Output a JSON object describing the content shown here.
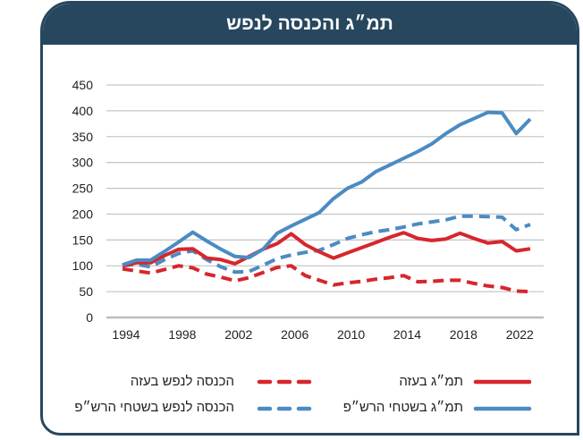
{
  "title": "תמ״ג והכנסה לנפש",
  "colors": {
    "header": "#27475f",
    "red": "#d7262d",
    "blue": "#4b8bc3",
    "grid": "#c8c8c8"
  },
  "chart_data": {
    "type": "line",
    "title": "תמ״ג והכנסה לנפש",
    "xlabel": "",
    "ylabel": "",
    "ylim": [
      0,
      450
    ],
    "xlim": [
      1994,
      2023
    ],
    "yticks": [
      0,
      50,
      100,
      150,
      200,
      250,
      300,
      350,
      400,
      450
    ],
    "xticks": [
      1994,
      1998,
      2002,
      2006,
      2010,
      2014,
      2018,
      2022
    ],
    "grid": "horizontal",
    "legend_placement": "bottom",
    "x": [
      1994,
      1995,
      1996,
      1997,
      1998,
      1999,
      2000,
      2001,
      2002,
      2003,
      2004,
      2005,
      2006,
      2007,
      2008,
      2009,
      2010,
      2011,
      2012,
      2013,
      2014,
      2015,
      2016,
      2017,
      2018,
      2019,
      2020,
      2021,
      2022,
      2023
    ],
    "series": [
      {
        "name": "תמ״ג בעזה",
        "style": "solid",
        "color": "#d7262d",
        "values": [
          100,
          106,
          106,
          120,
          132,
          133,
          115,
          112,
          104,
          118,
          132,
          143,
          162,
          141,
          127,
          115,
          125,
          135,
          145,
          155,
          164,
          153,
          149,
          152,
          163,
          153,
          144,
          147,
          129,
          133
        ]
      },
      {
        "name": "תמ״ג בשטחי הרש״פ",
        "style": "solid",
        "color": "#4b8bc3",
        "values": [
          102,
          111,
          111,
          128,
          146,
          165,
          148,
          132,
          118,
          116,
          132,
          163,
          177,
          190,
          203,
          230,
          250,
          262,
          282,
          295,
          308,
          321,
          336,
          356,
          373,
          385,
          397,
          396,
          356,
          384
        ]
      },
      {
        "name": "הכנסה לנפש בעזה",
        "style": "dashed",
        "color": "#d7262d",
        "values": [
          94,
          90,
          86,
          93,
          100,
          96,
          84,
          78,
          71,
          77,
          87,
          97,
          100,
          81,
          72,
          63,
          67,
          70,
          74,
          77,
          81,
          69,
          70,
          72,
          72,
          66,
          61,
          58,
          51,
          50
        ]
      },
      {
        "name": "הכנסה לנפש בשטחי הרש״פ",
        "style": "dashed",
        "color": "#4b8bc3",
        "values": [
          100,
          103,
          98,
          112,
          124,
          129,
          112,
          98,
          88,
          89,
          101,
          114,
          121,
          126,
          130,
          141,
          153,
          160,
          166,
          170,
          175,
          181,
          185,
          189,
          196,
          196,
          195,
          194,
          170,
          180
        ]
      }
    ]
  },
  "legend": [
    {
      "label": "תמ״ג בעזה"
    },
    {
      "label": "תמ״ג בשטחי הרש״פ"
    },
    {
      "label": "הכנסה לנפש בעזה"
    },
    {
      "label": "הכנסה לנפש בשטחי הרש״פ"
    }
  ]
}
